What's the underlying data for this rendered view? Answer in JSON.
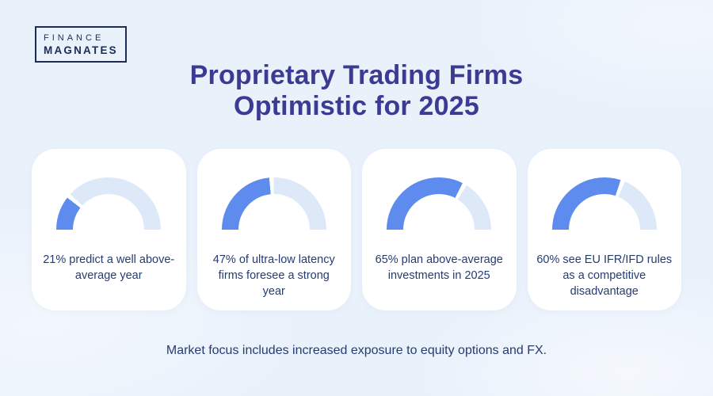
{
  "logo": {
    "line1": "FINANCE",
    "line2": "MAGNATES"
  },
  "title": {
    "line1": "Proprietary Trading Firms",
    "line2": "Optimistic for 2025"
  },
  "cards": [
    {
      "percent": 21,
      "text": "21% predict a well above-average year"
    },
    {
      "percent": 47,
      "text": "47% of ultra-low latency firms foresee a strong year"
    },
    {
      "percent": 65,
      "text": "65% plan above-average investments in 2025"
    },
    {
      "percent": 60,
      "text": "60% see EU IFR/IFD rules as a competitive disadvantage"
    }
  ],
  "footer": {
    "text": "Market focus includes increased exposure to equity options and FX."
  },
  "colors": {
    "background": "#e9f1fb",
    "card": "#ffffff",
    "gauge_fill": "#5d8bee",
    "gauge_track": "#dde9f8",
    "title": "#3d3a94",
    "text": "#253c72",
    "logo": "#1c2c54"
  },
  "chart_data": [
    {
      "type": "gauge",
      "value": 21,
      "max": 100,
      "label": "21% predict a well above-average year"
    },
    {
      "type": "gauge",
      "value": 47,
      "max": 100,
      "label": "47% of ultra-low latency firms foresee a strong year"
    },
    {
      "type": "gauge",
      "value": 65,
      "max": 100,
      "label": "65% plan above-average investments in 2025"
    },
    {
      "type": "gauge",
      "value": 60,
      "max": 100,
      "label": "60% see EU IFR/IFD rules as a competitive disadvantage"
    }
  ]
}
